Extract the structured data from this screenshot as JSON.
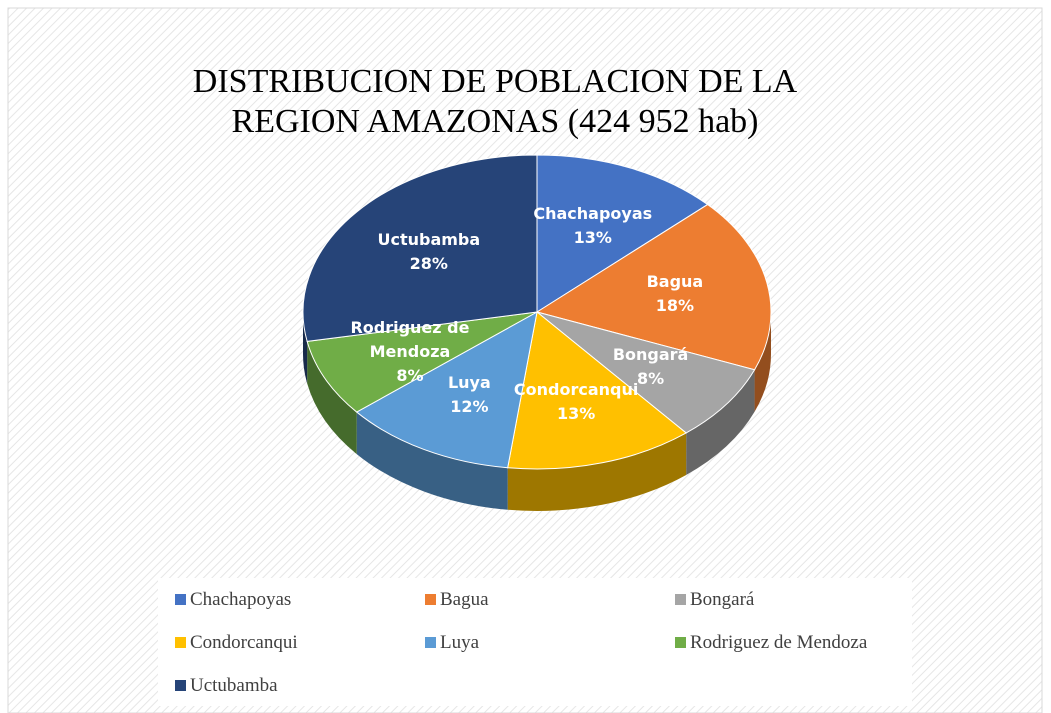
{
  "chart_data": {
    "type": "pie",
    "title": "DISTRIBUCION DE POBLACION DE LA REGION AMAZONAS (424 952 hab)",
    "categories": [
      "Chachapoyas",
      "Bagua",
      "Bongará",
      "Condorcanqui",
      "Luya",
      "Rodriguez de Mendoza",
      "Uctubamba"
    ],
    "values": [
      13,
      18,
      8,
      13,
      12,
      8,
      28
    ],
    "value_labels": [
      "13%",
      "18%",
      "8%",
      "13%",
      "12%",
      "8%",
      "28%"
    ],
    "colors": [
      "#4472c4",
      "#ed7d31",
      "#a5a5a5",
      "#ffc000",
      "#5b9bd5",
      "#70ad47",
      "#264478"
    ],
    "legend": "bottom"
  }
}
